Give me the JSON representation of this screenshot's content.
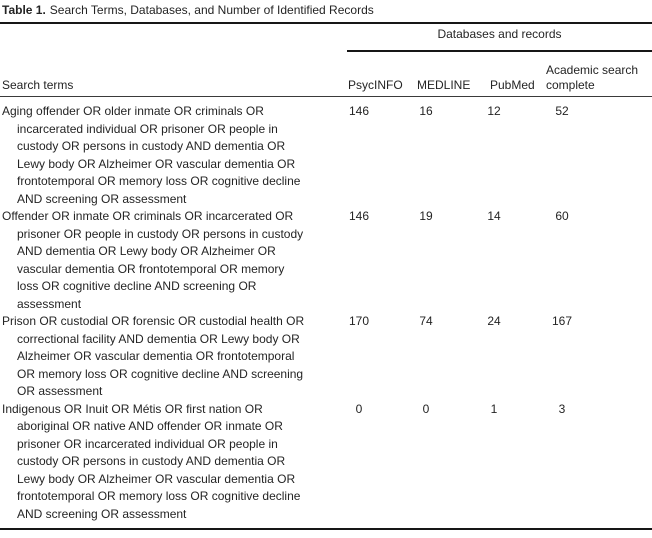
{
  "caption": {
    "label": "Table 1.",
    "title": "Search Terms, Databases, and Number of Identified Records"
  },
  "header": {
    "spanner": "Databases and records",
    "search_terms": "Search terms",
    "psycinfo": "PsycINFO",
    "medline": "MEDLINE",
    "pubmed": "PubMed",
    "academic": "Academic search complete"
  },
  "colors": {
    "text": "#242424",
    "rule": "#161616"
  },
  "rows": [
    {
      "term_lines": [
        "Aging offender OR older inmate OR criminals OR",
        "incarcerated individual OR prisoner OR people in",
        "custody OR persons in custody AND dementia OR",
        "Lewy body OR Alzheimer OR vascular dementia OR",
        "frontotemporal OR memory loss OR cognitive decline",
        "AND screening OR assessment"
      ],
      "psycinfo": "146",
      "medline": "16",
      "pubmed": "12",
      "academic": "52"
    },
    {
      "term_lines": [
        "Offender OR inmate OR criminals OR incarcerated OR",
        "prisoner OR people in custody OR persons in custody",
        "AND dementia OR Lewy body OR Alzheimer OR",
        "vascular dementia OR frontotemporal OR memory",
        "loss OR cognitive decline AND screening OR",
        "assessment"
      ],
      "psycinfo": "146",
      "medline": "19",
      "pubmed": "14",
      "academic": "60"
    },
    {
      "term_lines": [
        "Prison OR custodial OR forensic OR custodial health OR",
        "correctional facility AND dementia OR Lewy body OR",
        "Alzheimer OR vascular dementia OR frontotemporal",
        "OR memory loss OR cognitive decline AND screening",
        "OR assessment"
      ],
      "psycinfo": "170",
      "medline": "74",
      "pubmed": "24",
      "academic": "167"
    },
    {
      "term_lines": [
        "Indigenous OR Inuit OR Métis OR first nation OR",
        "aboriginal OR native AND offender OR inmate OR",
        "prisoner OR incarcerated individual OR people in",
        "custody OR persons in custody AND dementia OR",
        "Lewy body OR Alzheimer OR vascular dementia OR",
        "frontotemporal OR memory loss OR cognitive decline",
        "AND screening OR assessment"
      ],
      "psycinfo": "0",
      "medline": "0",
      "pubmed": "1",
      "academic": "3"
    }
  ]
}
